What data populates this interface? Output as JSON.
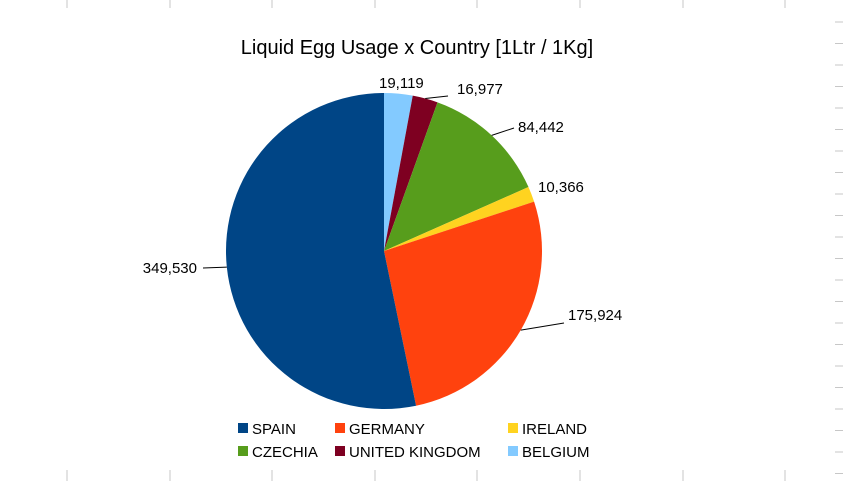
{
  "chart_data": {
    "type": "pie",
    "title": "Liquid Egg Usage x Country [1Ltr / 1Kg]",
    "series": [
      {
        "name": "SPAIN",
        "value": 349530,
        "label": "349,530",
        "color": "#004586"
      },
      {
        "name": "GERMANY",
        "value": 175924,
        "label": "175,924",
        "color": "#ff420e"
      },
      {
        "name": "IRELAND",
        "value": 10366,
        "label": "10,366",
        "color": "#ffd320"
      },
      {
        "name": "CZECHIA",
        "value": 84442,
        "label": "84,442",
        "color": "#579d1c"
      },
      {
        "name": "UNITED KINGDOM",
        "value": 16977,
        "label": "16,977",
        "color": "#7e0021"
      },
      {
        "name": "BELGIUM",
        "value": 19119,
        "label": "19,119",
        "color": "#83caff"
      }
    ],
    "slice_order_clockwise_from_top": [
      "BELGIUM",
      "UNITED KINGDOM",
      "CZECHIA",
      "IRELAND",
      "GERMANY",
      "SPAIN"
    ],
    "legend_position": "bottom",
    "data_labels": "outside with leader lines"
  }
}
